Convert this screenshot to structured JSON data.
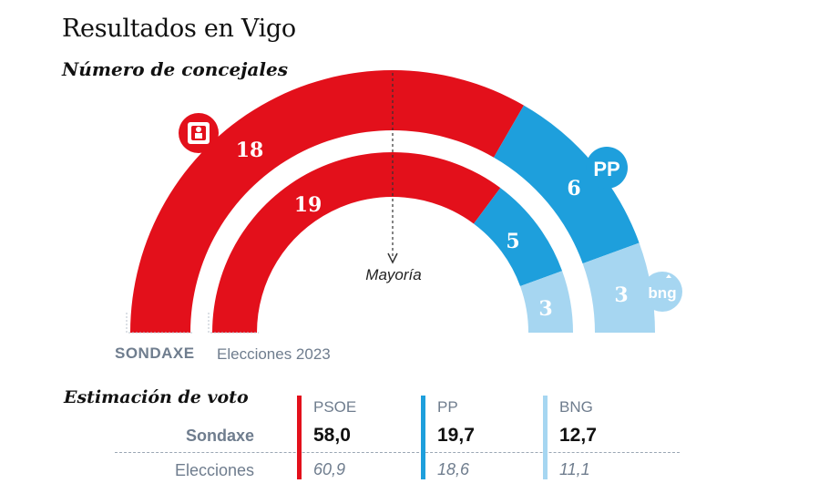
{
  "title": "Resultados en Vigo",
  "subtitle": "Número de concejales",
  "majority_label": "Mayoría",
  "colors": {
    "psoe": "#e3101b",
    "pp": "#1e9fdc",
    "bng": "#a6d6f1"
  },
  "chart_data": {
    "type": "parliament-arc",
    "title": "Número de concejales",
    "total_seats": 27,
    "majority": 14,
    "series": [
      {
        "name": "SONDAXE",
        "seats": [
          {
            "party": "PSOE",
            "value": 18
          },
          {
            "party": "PP",
            "value": 6
          },
          {
            "party": "BNG",
            "value": 3
          }
        ]
      },
      {
        "name": "Elecciones 2023",
        "seats": [
          {
            "party": "PSOE",
            "value": 19
          },
          {
            "party": "PP",
            "value": 5
          },
          {
            "party": "BNG",
            "value": 3
          }
        ]
      }
    ]
  },
  "arcs": {
    "outer_label": "SONDAXE",
    "inner_label": "Elecciones 2023",
    "outer_values": [
      "18",
      "6",
      "3"
    ],
    "inner_values": [
      "19",
      "5",
      "3"
    ]
  },
  "logos": {
    "psoe": "psoe-logo",
    "pp": "PP",
    "bng": "bng"
  },
  "estimate": {
    "title": "Estimación de voto",
    "rows": [
      "Sondaxe",
      "Elecciones"
    ],
    "parties": [
      {
        "name": "PSOE",
        "sondaxe": "58,0",
        "elecciones": "60,9"
      },
      {
        "name": "PP",
        "sondaxe": "19,7",
        "elecciones": "18,6"
      },
      {
        "name": "BNG",
        "sondaxe": "12,7",
        "elecciones": "11,1"
      }
    ]
  }
}
